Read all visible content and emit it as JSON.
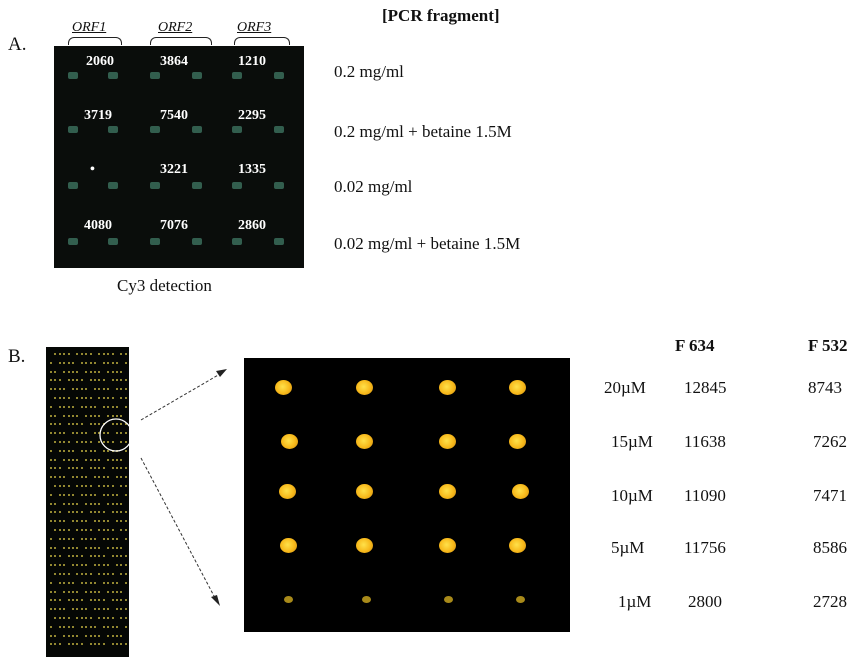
{
  "panel_a": {
    "letter": "A.",
    "header": "[PCR fragment]",
    "orfs": [
      "ORF1",
      "ORF2",
      "ORF3"
    ],
    "values": [
      [
        "2060",
        "3864",
        "1210"
      ],
      [
        "3719",
        "7540",
        "2295"
      ],
      [
        "•",
        "3221",
        "1335"
      ],
      [
        "4080",
        "7076",
        "2860"
      ]
    ],
    "conditions": [
      "0.2 mg/ml",
      "0.2 mg/ml + betaine 1.5M",
      "0.02 mg/ml",
      "0.02 mg/ml + betaine 1.5M"
    ],
    "caption": "Cy3 detection",
    "colors": {
      "background": "#0a0d0b",
      "spot": "#3a6d5a"
    }
  },
  "panel_b": {
    "letter": "B.",
    "col_headers": [
      "F 634",
      "F 532"
    ],
    "rows": [
      {
        "conc": "20µM",
        "f634": "12845",
        "f532": "8743"
      },
      {
        "conc": "15µM",
        "f634": "11638",
        "f532": "7262"
      },
      {
        "conc": "10µM",
        "f634": "11090",
        "f532": "7471"
      },
      {
        "conc": "5µM",
        "f634": "11756",
        "f532": "8586"
      },
      {
        "conc": "1µM",
        "f634": "2800",
        "f532": "2728"
      }
    ],
    "colors": {
      "spot": "#f7b81a",
      "array_dots": "#b7a93c"
    }
  }
}
